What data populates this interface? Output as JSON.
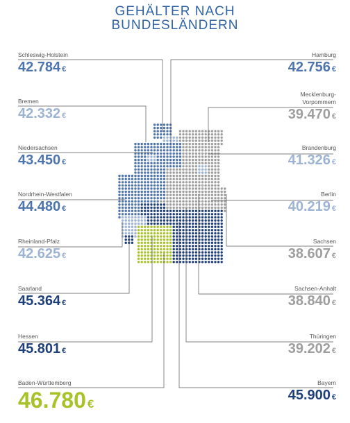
{
  "title_line1": "GEHÄLTER NACH",
  "title_line2": "BUNDESLÄNDERN",
  "currency": "€",
  "colors": {
    "title": "#2f63a6",
    "dark": "#1f3f7a",
    "mid": "#4d74ad",
    "light": "#9db3d3",
    "grey": "#9e9e9e",
    "green": "#a8c32a"
  },
  "left": [
    {
      "name": "Schleswig-Holstein",
      "value": "42.784",
      "color": "#4d74ad"
    },
    {
      "name": "Bremen",
      "value": "42.332",
      "color": "#9db3d3"
    },
    {
      "name": "Niedersachsen",
      "value": "43.450",
      "color": "#4d74ad"
    },
    {
      "name": "Nordrhein-Westfalen",
      "value": "44.480",
      "color": "#4d74ad"
    },
    {
      "name": "Rheinland-Pfalz",
      "value": "42.625",
      "color": "#9db3d3"
    },
    {
      "name": "Saarland",
      "value": "45.364",
      "color": "#1f3f7a"
    },
    {
      "name": "Hessen",
      "value": "45.801",
      "color": "#1f3f7a"
    },
    {
      "name": "Baden-Württemberg",
      "value": "46.780",
      "color": "#a8c32a"
    }
  ],
  "right": [
    {
      "name": "Hamburg",
      "value": "42.756",
      "color": "#4d74ad"
    },
    {
      "name": "Mecklenburg-\nVorpommern",
      "value": "39.470",
      "color": "#9e9e9e"
    },
    {
      "name": "Brandenburg",
      "value": "41.326",
      "color": "#9db3d3"
    },
    {
      "name": "Berlin",
      "value": "40.219",
      "color": "#9db3d3"
    },
    {
      "name": "Sachsen",
      "value": "38.607",
      "color": "#9e9e9e"
    },
    {
      "name": "Sachsen-Anhalt",
      "value": "38.840",
      "color": "#9e9e9e"
    },
    {
      "name": "Thüringen",
      "value": "39.202",
      "color": "#9e9e9e"
    },
    {
      "name": "Bayern",
      "value": "45.900",
      "color": "#1f3f7a"
    }
  ]
}
